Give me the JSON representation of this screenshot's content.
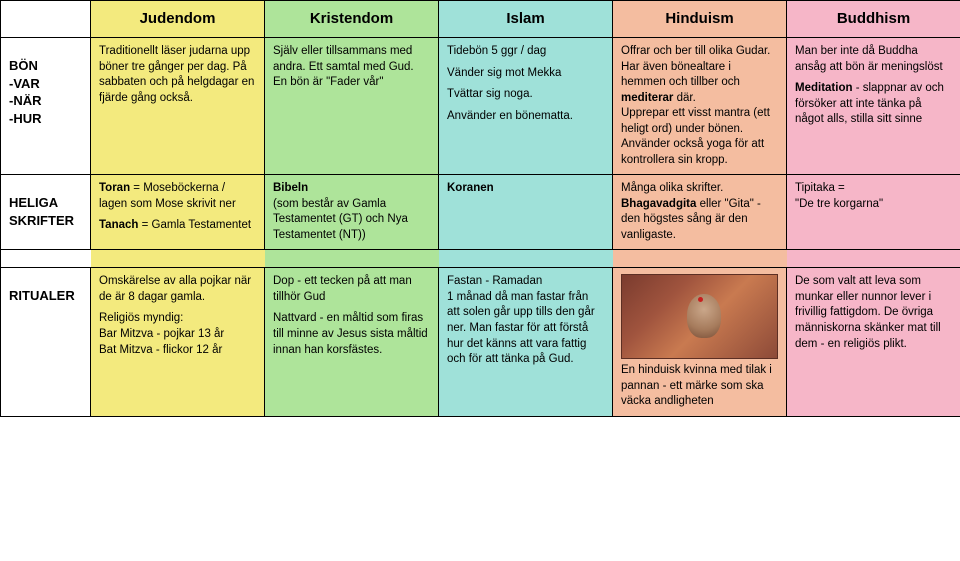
{
  "colors": {
    "judendom": "#f3ea7e",
    "kristendom": "#aee49a",
    "islam": "#9fe1d9",
    "hinduism": "#f4bda0",
    "buddhism": "#f6b6c8"
  },
  "headers": {
    "c1": "Judendom",
    "c2": "Kristendom",
    "c3": "Islam",
    "c4": "Hinduism",
    "c5": "Buddhism"
  },
  "rows": {
    "bon": {
      "label": "BÖN\n-VAR\n-NÄR\n-HUR",
      "judendom": "Traditionellt läser judarna upp böner tre gånger per dag. På sabbaten och på helgdagar en fjärde gång också.",
      "kristendom": "Själv eller tillsammans med andra. Ett samtal med Gud.\nEn bön är \"Fader vår\"",
      "islam": "Tidebön 5 ggr / dag|Vänder sig mot Mekka|Tvättar sig noga.|Använder en bönematta.",
      "hinduism": "Offrar och ber till olika Gudar.\nHar även bönealtare i hemmen och tillber och <b>mediterar</b> där.\nUpprepar ett visst mantra (ett heligt ord) under bönen. Använder också yoga för att kontrollera sin kropp.",
      "buddhism": "Man ber inte då Buddha ansåg att bön är meningslöst|<b>Meditation</b> - slappnar av och försöker att inte tänka på något alls, stilla sitt sinne"
    },
    "skrifter": {
      "label": "HELIGA SKRIFTER",
      "judendom": "<b>Toran</b> = Moseböckerna / lagen som Mose skrivit ner|<b>Tanach</b> = Gamla Testamentet",
      "kristendom": "<b>Bibeln</b>\n(som består av Gamla Testamentet (GT) och Nya Testamentet (NT))",
      "islam": "<b>Koranen</b>",
      "hinduism": "Många olika skrifter.\n<b>Bhagavadgita</b> eller \"Gita\" - den högstes sång är den vanligaste.",
      "buddhism": "Tipitaka =\n\"De tre korgarna\""
    },
    "ritualer": {
      "label": "RITUALER",
      "judendom": "Omskärelse av alla pojkar när de är 8 dagar gamla.|Religiös myndig:\nBar Mitzva - pojkar 13 år\nBat Mitzva - flickor 12 år",
      "kristendom": "Dop - ett tecken på att man tillhör Gud|Nattvard - en måltid som firas till minne av Jesus sista måltid innan han korsfästes.",
      "islam": "Fastan - Ramadan\n1 månad då man fastar från att solen går upp tills den går ner. Man fastar för att förstå hur det känns att vara fattig och för att tänka på Gud.",
      "hinduism_caption": "En hinduisk kvinna med tilak i pannan - ett märke som ska väcka andligheten",
      "buddhism": "De som valt att leva som munkar eller nunnor lever i frivillig fattigdom. De övriga människorna skänker mat till dem - en religiös plikt."
    }
  }
}
